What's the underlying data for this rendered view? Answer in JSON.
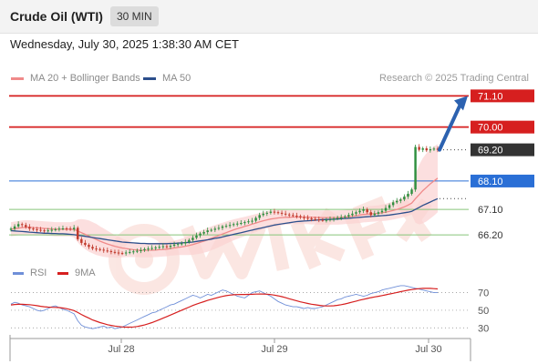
{
  "header": {
    "title": "Crude Oil (WTI)",
    "timeframe": "30 MIN"
  },
  "datetime": "Wednesday, July 30, 2025 1:38:30 AM CET",
  "legend": {
    "ma20_label": "MA 20 + Bollinger Bands",
    "ma50_label": "MA 50",
    "credit": "Research © 2025 Trading Central"
  },
  "rsi_legend": {
    "rsi_label": "RSI",
    "ma_label": "9MA"
  },
  "colors": {
    "resistance": "#d61f1f",
    "pivot": "#2a6fd6",
    "support": "#86c57a",
    "current": "#333333",
    "candle_up": "#2f8f3f",
    "candle_down": "#c0392b",
    "ma20": "#f08a8a",
    "ma50": "#2c4f8c",
    "bb_fill": "#fbd2d2",
    "rsi": "#6f8fd8",
    "rsi_ma": "#d61f1f",
    "arrow": "#2c62b0"
  },
  "chart_data": [
    {
      "type": "candlestick",
      "title": "Crude Oil (WTI)",
      "timeframe": "30 MIN",
      "x_ticks": [
        "Jul 28",
        "Jul 29",
        "Jul 30"
      ],
      "ylim": [
        65.5,
        71.4
      ],
      "levels": [
        {
          "label": "71.10",
          "value": 71.1,
          "kind": "resistance",
          "style": "solid"
        },
        {
          "label": "70.00",
          "value": 70.0,
          "kind": "resistance",
          "style": "solid"
        },
        {
          "label": "69.20",
          "value": 69.2,
          "kind": "current",
          "style": "dotted"
        },
        {
          "label": "68.10",
          "value": 68.1,
          "kind": "pivot",
          "style": "solid"
        },
        {
          "label": "67.10",
          "value": 67.1,
          "kind": "support",
          "style": "solid"
        },
        {
          "label": "66.20",
          "value": 66.2,
          "kind": "support",
          "style": "solid"
        }
      ],
      "close": [
        66.42,
        66.5,
        66.58,
        66.55,
        66.48,
        66.42,
        66.4,
        66.38,
        66.36,
        66.35,
        66.36,
        66.38,
        66.4,
        66.42,
        66.43,
        66.42,
        66.4,
        66.45,
        66.05,
        65.92,
        65.85,
        65.78,
        65.72,
        65.7,
        65.68,
        65.65,
        65.63,
        65.6,
        65.58,
        65.56,
        65.55,
        65.58,
        65.6,
        65.62,
        65.64,
        65.66,
        65.7,
        65.72,
        65.74,
        65.76,
        65.78,
        65.8,
        65.78,
        65.82,
        65.86,
        65.88,
        65.9,
        65.95,
        66.02,
        66.1,
        66.18,
        66.25,
        66.3,
        66.36,
        66.38,
        66.42,
        66.45,
        66.5,
        66.52,
        66.55,
        66.58,
        66.6,
        66.62,
        66.65,
        66.68,
        66.7,
        66.8,
        66.9,
        66.95,
        66.98,
        67.02,
        67.0,
        66.98,
        66.95,
        66.92,
        66.9,
        66.88,
        66.86,
        66.82,
        66.8,
        66.78,
        66.76,
        66.75,
        66.73,
        66.72,
        66.73,
        66.75,
        66.78,
        66.8,
        66.82,
        66.85,
        66.9,
        66.95,
        67.0,
        67.05,
        67.1,
        67.0,
        66.9,
        66.95,
        67.0,
        67.05,
        67.15,
        67.25,
        67.35,
        67.4,
        67.45,
        67.55,
        67.65,
        67.8,
        69.3,
        69.2,
        69.25,
        69.18,
        69.22,
        69.24,
        69.2
      ],
      "ma20": [
        66.4,
        66.42,
        66.44,
        66.46,
        66.47,
        66.47,
        66.46,
        66.45,
        66.44,
        66.43,
        66.42,
        66.41,
        66.4,
        66.4,
        66.4,
        66.4,
        66.4,
        66.39,
        66.34,
        66.28,
        66.22,
        66.16,
        66.1,
        66.04,
        65.98,
        65.93,
        65.88,
        65.84,
        65.8,
        65.77,
        65.74,
        65.72,
        65.7,
        65.68,
        65.67,
        65.66,
        65.66,
        65.66,
        65.66,
        65.67,
        65.68,
        65.69,
        65.7,
        65.72,
        65.74,
        65.76,
        65.78,
        65.8,
        65.83,
        65.86,
        65.9,
        65.94,
        65.98,
        66.03,
        66.08,
        66.13,
        66.18,
        66.23,
        66.28,
        66.33,
        66.38,
        66.42,
        66.46,
        66.5,
        66.54,
        66.58,
        66.62,
        66.66,
        66.7,
        66.73,
        66.76,
        66.78,
        66.8,
        66.81,
        66.82,
        66.82,
        66.83,
        66.83,
        66.83,
        66.83,
        66.83,
        66.82,
        66.82,
        66.81,
        66.81,
        66.81,
        66.81,
        66.81,
        66.81,
        66.82,
        66.83,
        66.84,
        66.86,
        66.88,
        66.9,
        66.92,
        66.93,
        66.94,
        66.95,
        66.96,
        66.98,
        67.0,
        67.03,
        67.06,
        67.1,
        67.14,
        67.19,
        67.25,
        67.32,
        67.48,
        67.62,
        67.76,
        67.88,
        68.0,
        68.1,
        68.2
      ],
      "ma50": [
        66.35,
        66.34,
        66.33,
        66.32,
        66.31,
        66.3,
        66.29,
        66.28,
        66.27,
        66.26,
        66.26,
        66.25,
        66.25,
        66.24,
        66.24,
        66.23,
        66.22,
        66.21,
        66.19,
        66.17,
        66.15,
        66.13,
        66.11,
        66.09,
        66.07,
        66.05,
        66.03,
        66.01,
        65.99,
        65.97,
        65.95,
        65.94,
        65.93,
        65.92,
        65.91,
        65.9,
        65.9,
        65.89,
        65.89,
        65.89,
        65.89,
        65.89,
        65.89,
        65.9,
        65.9,
        65.91,
        65.92,
        65.93,
        65.94,
        65.95,
        65.97,
        65.99,
        66.01,
        66.03,
        66.05,
        66.08,
        66.1,
        66.13,
        66.16,
        66.19,
        66.22,
        66.25,
        66.28,
        66.31,
        66.34,
        66.37,
        66.4,
        66.43,
        66.46,
        66.49,
        66.52,
        66.55,
        66.57,
        66.59,
        66.61,
        66.63,
        66.65,
        66.67,
        66.68,
        66.69,
        66.7,
        66.71,
        66.72,
        66.73,
        66.74,
        66.74,
        66.75,
        66.75,
        66.76,
        66.77,
        66.78,
        66.79,
        66.8,
        66.81,
        66.82,
        66.83,
        66.84,
        66.85,
        66.86,
        66.87,
        66.88,
        66.89,
        66.9,
        66.92,
        66.94,
        66.96,
        66.98,
        67.0,
        67.03,
        67.1,
        67.17,
        67.24,
        67.3,
        67.36,
        67.42,
        67.48
      ],
      "bollinger_width": [
        0.25,
        0.25,
        0.25,
        0.25,
        0.25,
        0.25,
        0.25,
        0.25,
        0.25,
        0.25,
        0.25,
        0.25,
        0.25,
        0.25,
        0.25,
        0.25,
        0.25,
        0.28,
        0.4,
        0.48,
        0.52,
        0.55,
        0.55,
        0.55,
        0.52,
        0.5,
        0.47,
        0.43,
        0.4,
        0.37,
        0.33,
        0.3,
        0.28,
        0.26,
        0.25,
        0.25,
        0.25,
        0.25,
        0.25,
        0.25,
        0.25,
        0.25,
        0.25,
        0.25,
        0.26,
        0.27,
        0.29,
        0.31,
        0.34,
        0.36,
        0.38,
        0.4,
        0.41,
        0.42,
        0.42,
        0.42,
        0.41,
        0.4,
        0.39,
        0.38,
        0.37,
        0.36,
        0.35,
        0.34,
        0.33,
        0.32,
        0.32,
        0.31,
        0.31,
        0.3,
        0.3,
        0.29,
        0.28,
        0.27,
        0.26,
        0.25,
        0.25,
        0.25,
        0.25,
        0.25,
        0.25,
        0.25,
        0.25,
        0.25,
        0.25,
        0.25,
        0.25,
        0.25,
        0.25,
        0.25,
        0.25,
        0.25,
        0.26,
        0.27,
        0.28,
        0.28,
        0.28,
        0.28,
        0.28,
        0.28,
        0.29,
        0.3,
        0.31,
        0.32,
        0.33,
        0.34,
        0.36,
        0.38,
        0.4,
        0.85,
        1.05,
        1.15,
        1.2,
        1.22,
        1.22,
        1.2
      ]
    },
    {
      "type": "line",
      "title": "RSI",
      "series": [
        {
          "name": "RSI",
          "values": [
            57,
            59,
            58,
            56,
            55,
            54,
            52,
            50,
            49,
            50,
            52,
            54,
            55,
            53,
            51,
            50,
            48,
            46,
            38,
            33,
            31,
            30,
            29,
            30,
            31,
            32,
            30,
            31,
            29,
            30,
            31,
            33,
            35,
            37,
            39,
            41,
            43,
            45,
            47,
            48,
            50,
            52,
            54,
            56,
            57,
            59,
            61,
            63,
            65,
            67,
            66,
            64,
            66,
            68,
            67,
            69,
            71,
            73,
            72,
            70,
            68,
            66,
            65,
            64,
            67,
            70,
            71,
            72,
            70,
            68,
            66,
            63,
            60,
            58,
            56,
            55,
            54,
            54,
            53,
            52,
            53,
            52,
            52,
            53,
            54,
            56,
            58,
            60,
            62,
            63,
            65,
            66,
            67,
            68,
            67,
            66,
            67,
            69,
            70,
            71,
            73,
            74,
            75,
            76,
            77,
            78,
            78,
            77,
            76,
            75,
            74,
            73,
            72,
            71,
            70,
            70
          ]
        },
        {
          "name": "9MA",
          "values": [
            56,
            56.5,
            56.8,
            56.8,
            56.6,
            56.3,
            55.8,
            55.2,
            54.5,
            54,
            53.6,
            53.3,
            53.2,
            53,
            52.5,
            51.8,
            50.8,
            49.6,
            47.4,
            45.2,
            43,
            41,
            39,
            37.5,
            36,
            34.8,
            33.6,
            32.8,
            32,
            31.5,
            31,
            30.8,
            30.8,
            31,
            31.5,
            32.3,
            33.3,
            34.6,
            36,
            37.6,
            39.3,
            41,
            42.8,
            44.6,
            46.4,
            48.2,
            50,
            51.8,
            53.6,
            55.4,
            57,
            58.4,
            59.8,
            61.2,
            62.4,
            63.6,
            64.7,
            65.8,
            66.6,
            67.2,
            67.6,
            67.8,
            67.9,
            67.9,
            68,
            68.1,
            68.3,
            68.5,
            68.4,
            68.2,
            67.8,
            67.2,
            66.4,
            65.4,
            64.3,
            63.1,
            61.9,
            60.7,
            59.6,
            58.6,
            57.7,
            56.9,
            56.2,
            55.6,
            55.1,
            54.9,
            54.9,
            55.1,
            55.6,
            56.3,
            57.2,
            58.2,
            59.3,
            60.4,
            61.5,
            62.5,
            63.4,
            64.3,
            65.1,
            65.9,
            66.7,
            67.5,
            68.4,
            69.3,
            70.2,
            71.1,
            72,
            72.8,
            73.5,
            74.1,
            74.6,
            74.9,
            75,
            74.9,
            74.6,
            74.2
          ]
        }
      ],
      "y_ticks": [
        70,
        50,
        30
      ],
      "ylim": [
        22,
        82
      ]
    }
  ]
}
